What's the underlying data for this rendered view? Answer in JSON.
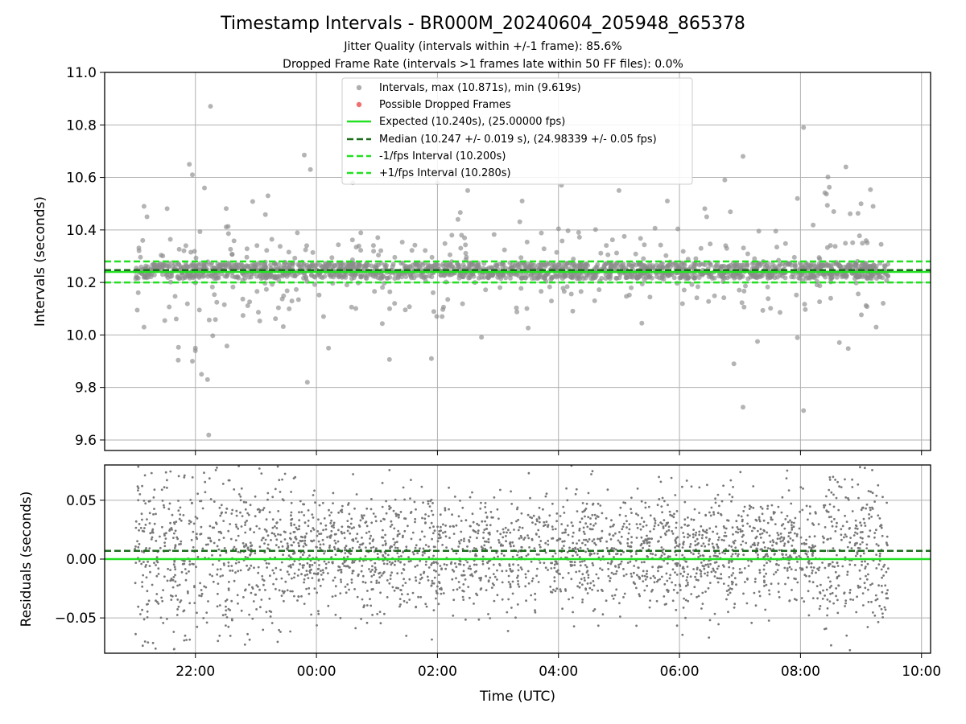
{
  "chart_data": {
    "type": "scatter",
    "title": "Timestamp Intervals - BR000M_20240604_205948_865378",
    "subtitles": [
      "Jitter Quality (intervals within +/-1 frame): 85.6%",
      "Dropped Frame Rate (intervals >1 frames late within 50 FF files): 0.0%"
    ],
    "xlabel": "Time (UTC)",
    "x_tick_labels": [
      "22:00",
      "00:00",
      "02:00",
      "04:00",
      "06:00",
      "08:00",
      "10:00"
    ],
    "x_ticks_hours": [
      22,
      24,
      26,
      28,
      30,
      32,
      34
    ],
    "xlim_hours": [
      20.5,
      34.15
    ],
    "data_start_hours": 21.0,
    "data_end_hours": 33.45,
    "colors": {
      "points": "#8c8c8c",
      "dropped": "#e84d4d",
      "expected": "#22e022",
      "median": "#1a6b1a",
      "bound": "#22e022",
      "residual_points": "#777777"
    },
    "panels": [
      {
        "name": "intervals",
        "ylabel": "Intervals (seconds)",
        "ylim": [
          9.56,
          11.0
        ],
        "y_ticks": [
          9.6,
          9.8,
          10.0,
          10.2,
          10.4,
          10.6,
          10.8,
          11.0
        ],
        "y_tick_labels": [
          "9.6",
          "9.8",
          "10.0",
          "10.2",
          "10.4",
          "10.6",
          "10.8",
          "11.0"
        ],
        "series": [
          {
            "name": "Intervals, max (10.871s), min (9.619s)",
            "kind": "points",
            "max": 10.871,
            "min": 9.619
          },
          {
            "name": "Possible Dropped Frames",
            "kind": "points",
            "count": 0
          },
          {
            "name": "Expected (10.240s), (25.00000 fps)",
            "kind": "hline",
            "y": 10.24,
            "style": "solid"
          },
          {
            "name": "Median (10.247 +/- 0.019 s), (24.98339 +/- 0.05 fps)",
            "kind": "hline",
            "y": 10.247,
            "style": "dashed"
          },
          {
            "name": "-1/fps Interval (10.200s)",
            "kind": "hline",
            "y": 10.2,
            "style": "dashed"
          },
          {
            "name": "+1/fps Interval (10.280s)",
            "kind": "hline",
            "y": 10.28,
            "style": "dashed"
          }
        ],
        "outliers": [
          [
            22.25,
            10.871
          ],
          [
            22.22,
            9.619
          ],
          [
            32.05,
            10.79
          ],
          [
            32.05,
            9.712
          ],
          [
            31.05,
            9.725
          ],
          [
            31.05,
            10.68
          ],
          [
            23.8,
            10.685
          ],
          [
            23.85,
            9.82
          ],
          [
            21.9,
            10.65
          ],
          [
            21.95,
            10.61
          ],
          [
            22.15,
            10.56
          ],
          [
            21.95,
            9.9
          ],
          [
            22.0,
            9.95
          ],
          [
            22.1,
            9.85
          ],
          [
            22.0,
            9.94
          ],
          [
            22.2,
            9.83
          ],
          [
            23.9,
            10.63
          ],
          [
            32.75,
            10.64
          ],
          [
            30.75,
            10.59
          ],
          [
            30.9,
            9.89
          ],
          [
            28.05,
            10.57
          ],
          [
            26.0,
            10.58
          ],
          [
            24.2,
            9.95
          ],
          [
            21.15,
            10.49
          ],
          [
            21.2,
            10.45
          ],
          [
            21.15,
            10.03
          ],
          [
            33.0,
            10.5
          ],
          [
            33.2,
            10.49
          ],
          [
            33.25,
            10.03
          ],
          [
            32.55,
            10.47
          ],
          [
            31.95,
            10.52
          ],
          [
            31.95,
            9.99
          ],
          [
            29.8,
            10.51
          ],
          [
            29.0,
            10.55
          ],
          [
            23.2,
            10.53
          ],
          [
            24.6,
            10.58
          ],
          [
            26.5,
            10.55
          ],
          [
            27.4,
            10.51
          ],
          [
            30.45,
            10.45
          ],
          [
            25.9,
            9.91
          ]
        ],
        "band": {
          "center": 10.245,
          "spread": 0.03,
          "points": 1600
        },
        "scatter_points": 380
      },
      {
        "name": "residuals",
        "ylabel": "Residuals (seconds)",
        "ylim": [
          -0.08,
          0.08
        ],
        "y_ticks": [
          -0.05,
          0.0,
          0.05
        ],
        "y_tick_labels": [
          "−0.05",
          "0.00",
          "0.05"
        ],
        "series": [
          {
            "kind": "points",
            "count": 2900
          },
          {
            "kind": "hline",
            "y": 0.0,
            "style": "solid"
          },
          {
            "kind": "hline",
            "y": 0.007,
            "style": "dashed"
          }
        ]
      }
    ],
    "legend_position": "upper-center"
  }
}
